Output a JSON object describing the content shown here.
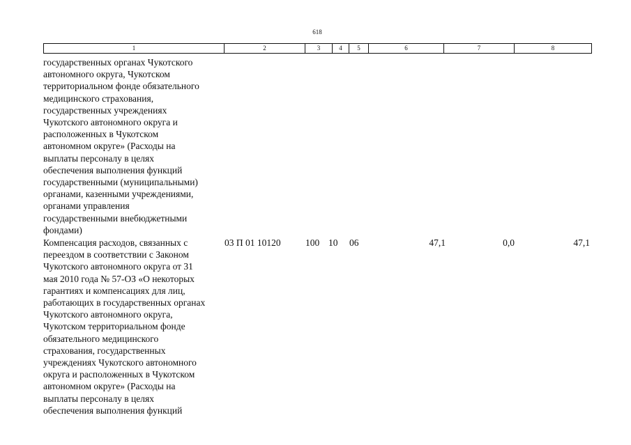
{
  "page_number": "618",
  "table": {
    "header": [
      "1",
      "2",
      "3",
      "4",
      "5",
      "6",
      "7",
      "8"
    ],
    "rows": [
      {
        "description_lines": [
          "государственных органах Чукотского",
          "автономного округа, Чукотском",
          "территориальном фонде обязательного",
          "медицинского страхования,",
          "государственных учреждениях",
          "Чукотского автономного округа и",
          "расположенных в Чукотском",
          "автономном округе» (Расходы на",
          "выплаты персоналу в целях",
          "обеспечения выполнения функций",
          "государственными (муниципальными)",
          "органами, казенными учреждениями,",
          "органами управления",
          "государственными внебюджетными",
          "фондами)"
        ]
      },
      {
        "description_lines": [
          "Компенсация расходов, связанных с",
          "переездом в соответствии с Законом",
          "Чукотского автономного округа от 31",
          "мая 2010 года № 57-ОЗ «О некоторых",
          "гарантиях и компенсациях для лиц,",
          "работающих в государственных органах",
          "Чукотского автономного округа,",
          "Чукотском территориальном фонде",
          "обязательного медицинского",
          "страхования, государственных",
          "учреждениях Чукотского автономного",
          "округа и расположенных в Чукотском",
          "автономном округе» (Расходы на",
          "выплаты персоналу в целях",
          "обеспечения выполнения функций"
        ],
        "cells": [
          "03 П 01 10120",
          "100",
          "10",
          "06",
          "47,1",
          "0,0",
          "47,1"
        ]
      }
    ]
  }
}
